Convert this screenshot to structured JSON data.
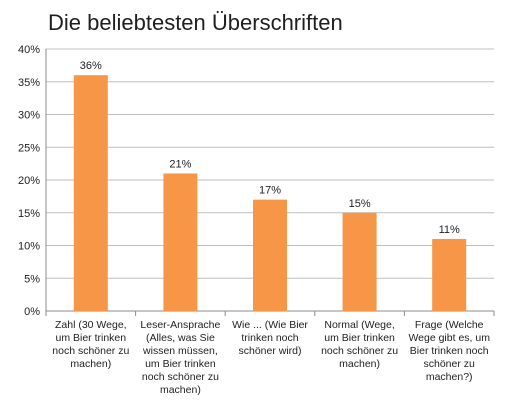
{
  "chart_data": {
    "type": "bar",
    "title": "Die beliebtesten Überschriften",
    "xlabel": "",
    "ylabel": "",
    "ylim": [
      0,
      40
    ],
    "yticks": [
      0,
      5,
      10,
      15,
      20,
      25,
      30,
      35,
      40
    ],
    "ytick_labels": [
      "0%",
      "5%",
      "10%",
      "15%",
      "20%",
      "25%",
      "30%",
      "35%",
      "40%"
    ],
    "categories": [
      [
        "Zahl (30 Wege,",
        "um Bier trinken",
        "noch schöner zu",
        "machen)"
      ],
      [
        "Leser-Ansprache",
        "(Alles, was Sie",
        "wissen müssen,",
        "um Bier trinken",
        "noch schöner zu",
        "machen)"
      ],
      [
        "Wie ... (Wie Bier",
        "trinken noch",
        "schöner wird)"
      ],
      [
        "Normal (Wege,",
        "um Bier trinken",
        "noch schöner zu",
        "machen)"
      ],
      [
        "Frage (Welche",
        "Wege gibt es, um",
        "Bier trinken noch",
        "schöner zu",
        "machen?)"
      ]
    ],
    "values": [
      36,
      21,
      17,
      15,
      11
    ],
    "data_labels": [
      "36%",
      "21%",
      "17%",
      "15%",
      "11%"
    ],
    "bar_color": "#f79646",
    "grid": true,
    "grid_color": "#bfbfbf",
    "legend": "none"
  }
}
